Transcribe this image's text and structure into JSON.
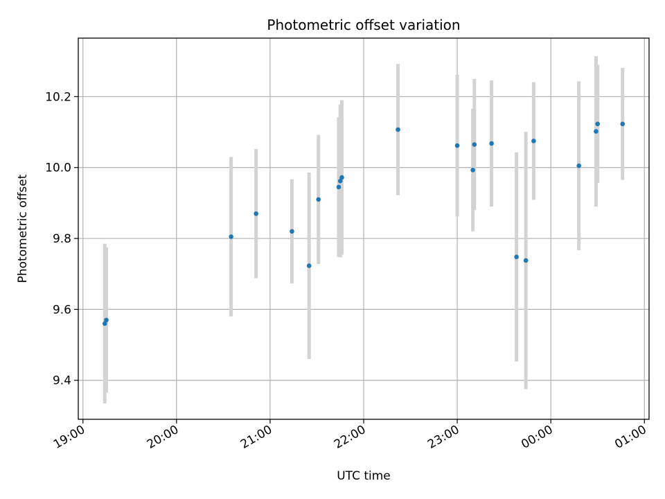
{
  "chart_data": {
    "type": "scatter",
    "title": "Photometric offset variation",
    "xlabel": "UTC time",
    "ylabel": "Photometric offset",
    "grid": true,
    "x_ticks": [
      "19:00",
      "20:00",
      "21:00",
      "22:00",
      "23:00",
      "00:00",
      "01:00"
    ],
    "y_ticks": [
      9.4,
      9.6,
      9.8,
      10.0,
      10.2
    ],
    "xlim_hours": [
      18.95,
      25.05
    ],
    "ylim": [
      9.29,
      10.365
    ],
    "marker_color": "#1f77b4",
    "errorbar_color": "#d3d3d3",
    "points": [
      {
        "t": "19:14",
        "y": 9.56,
        "err": 0.225
      },
      {
        "t": "19:15",
        "y": 9.57,
        "err": 0.205
      },
      {
        "t": "20:35",
        "y": 9.805,
        "err": 0.225
      },
      {
        "t": "20:51",
        "y": 9.87,
        "err": 0.182
      },
      {
        "t": "21:14",
        "y": 9.82,
        "err": 0.147
      },
      {
        "t": "21:25",
        "y": 9.723,
        "err": 0.263
      },
      {
        "t": "21:31",
        "y": 9.91,
        "err": 0.182
      },
      {
        "t": "21:44",
        "y": 9.945,
        "err": 0.197
      },
      {
        "t": "21:45",
        "y": 9.962,
        "err": 0.215
      },
      {
        "t": "21:46",
        "y": 9.972,
        "err": 0.218
      },
      {
        "t": "22:22",
        "y": 10.107,
        "err": 0.185
      },
      {
        "t": "23:00",
        "y": 10.062,
        "err": 0.2
      },
      {
        "t": "23:10",
        "y": 9.993,
        "err": 0.173
      },
      {
        "t": "23:11",
        "y": 10.065,
        "err": 0.185
      },
      {
        "t": "23:22",
        "y": 10.068,
        "err": 0.178
      },
      {
        "t": "23:38",
        "y": 9.748,
        "err": 0.295
      },
      {
        "t": "23:44",
        "y": 9.738,
        "err": 0.363
      },
      {
        "t": "23:49",
        "y": 10.075,
        "err": 0.166
      },
      {
        "t": "00:18",
        "y": 10.005,
        "err": 0.238
      },
      {
        "t": "00:29",
        "y": 10.102,
        "err": 0.212
      },
      {
        "t": "00:30",
        "y": 10.123,
        "err": 0.167
      },
      {
        "t": "00:46",
        "y": 10.123,
        "err": 0.158
      }
    ]
  }
}
